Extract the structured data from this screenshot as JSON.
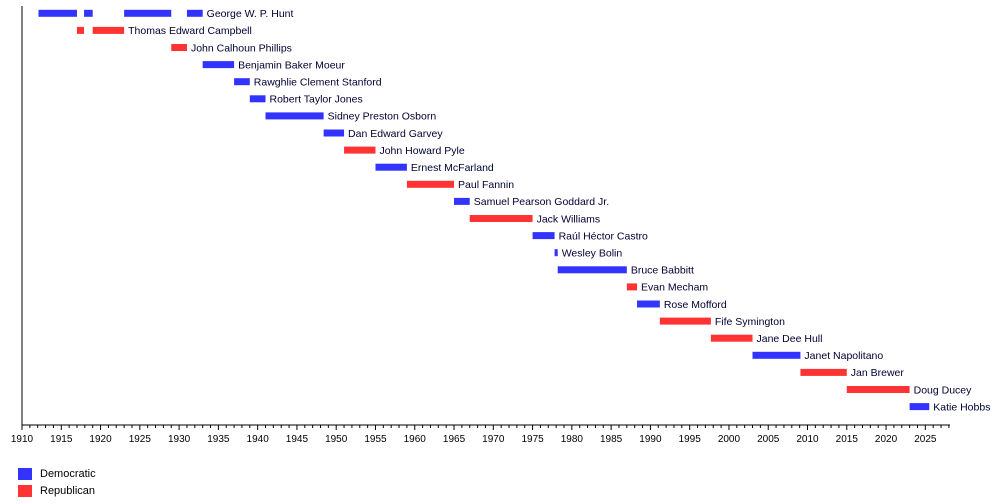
{
  "chart_data": {
    "type": "bar",
    "title": "",
    "xlabel": "",
    "ylabel": "",
    "xlim": [
      1910,
      2029
    ],
    "xticks": [
      1910,
      1915,
      1920,
      1925,
      1930,
      1935,
      1940,
      1945,
      1950,
      1955,
      1960,
      1965,
      1970,
      1975,
      1980,
      1985,
      1990,
      1995,
      2000,
      2005,
      2010,
      2015,
      2020,
      2025
    ],
    "grid": false,
    "legend_position": "bottom-left",
    "colors": {
      "Democratic": "#3333ff",
      "Republican": "#ff3333"
    },
    "legend": [
      {
        "party": "Democratic",
        "label": "Democratic"
      },
      {
        "party": "Republican",
        "label": "Republican"
      }
    ],
    "rows": [
      {
        "name": "George W. P. Hunt",
        "party": "Democratic",
        "terms": [
          [
            1912.1,
            1917.0
          ],
          [
            1917.9,
            1919.0
          ],
          [
            1923.0,
            1929.0
          ],
          [
            1931.0,
            1933.0
          ]
        ]
      },
      {
        "name": "Thomas Edward Campbell",
        "party": "Republican",
        "terms": [
          [
            1917.0,
            1917.9
          ],
          [
            1919.0,
            1923.0
          ]
        ]
      },
      {
        "name": "John Calhoun Phillips",
        "party": "Republican",
        "terms": [
          [
            1929.0,
            1931.0
          ]
        ]
      },
      {
        "name": "Benjamin Baker Moeur",
        "party": "Democratic",
        "terms": [
          [
            1933.0,
            1937.0
          ]
        ]
      },
      {
        "name": "Rawghlie Clement Stanford",
        "party": "Democratic",
        "terms": [
          [
            1937.0,
            1939.0
          ]
        ]
      },
      {
        "name": "Robert Taylor Jones",
        "party": "Democratic",
        "terms": [
          [
            1939.0,
            1941.0
          ]
        ]
      },
      {
        "name": "Sidney Preston Osborn",
        "party": "Democratic",
        "terms": [
          [
            1941.0,
            1948.4
          ]
        ]
      },
      {
        "name": "Dan Edward Garvey",
        "party": "Democratic",
        "terms": [
          [
            1948.4,
            1951.0
          ]
        ]
      },
      {
        "name": "John Howard Pyle",
        "party": "Republican",
        "terms": [
          [
            1951.0,
            1955.0
          ]
        ]
      },
      {
        "name": "Ernest McFarland",
        "party": "Democratic",
        "terms": [
          [
            1955.0,
            1959.0
          ]
        ]
      },
      {
        "name": "Paul Fannin",
        "party": "Republican",
        "terms": [
          [
            1959.0,
            1965.0
          ]
        ]
      },
      {
        "name": "Samuel Pearson Goddard Jr.",
        "party": "Democratic",
        "terms": [
          [
            1965.0,
            1967.0
          ]
        ]
      },
      {
        "name": "Jack Williams",
        "party": "Republican",
        "terms": [
          [
            1967.0,
            1975.0
          ]
        ]
      },
      {
        "name": "Raúl Héctor Castro",
        "party": "Democratic",
        "terms": [
          [
            1975.0,
            1977.8
          ]
        ]
      },
      {
        "name": "Wesley Bolin",
        "party": "Democratic",
        "terms": [
          [
            1977.8,
            1978.2
          ]
        ]
      },
      {
        "name": "Bruce Babbitt",
        "party": "Democratic",
        "terms": [
          [
            1978.2,
            1987.0
          ]
        ]
      },
      {
        "name": "Evan Mecham",
        "party": "Republican",
        "terms": [
          [
            1987.0,
            1988.3
          ]
        ]
      },
      {
        "name": "Rose Mofford",
        "party": "Democratic",
        "terms": [
          [
            1988.3,
            1991.2
          ]
        ]
      },
      {
        "name": "Fife Symington",
        "party": "Republican",
        "terms": [
          [
            1991.2,
            1997.7
          ]
        ]
      },
      {
        "name": "Jane Dee Hull",
        "party": "Republican",
        "terms": [
          [
            1997.7,
            2003.0
          ]
        ]
      },
      {
        "name": "Janet Napolitano",
        "party": "Democratic",
        "terms": [
          [
            2003.0,
            2009.1
          ]
        ]
      },
      {
        "name": "Jan Brewer",
        "party": "Republican",
        "terms": [
          [
            2009.1,
            2015.0
          ]
        ]
      },
      {
        "name": "Doug Ducey",
        "party": "Republican",
        "terms": [
          [
            2015.0,
            2023.0
          ]
        ]
      },
      {
        "name": "Katie Hobbs",
        "party": "Democratic",
        "terms": [
          [
            2023.0,
            2025.5
          ]
        ]
      }
    ]
  }
}
